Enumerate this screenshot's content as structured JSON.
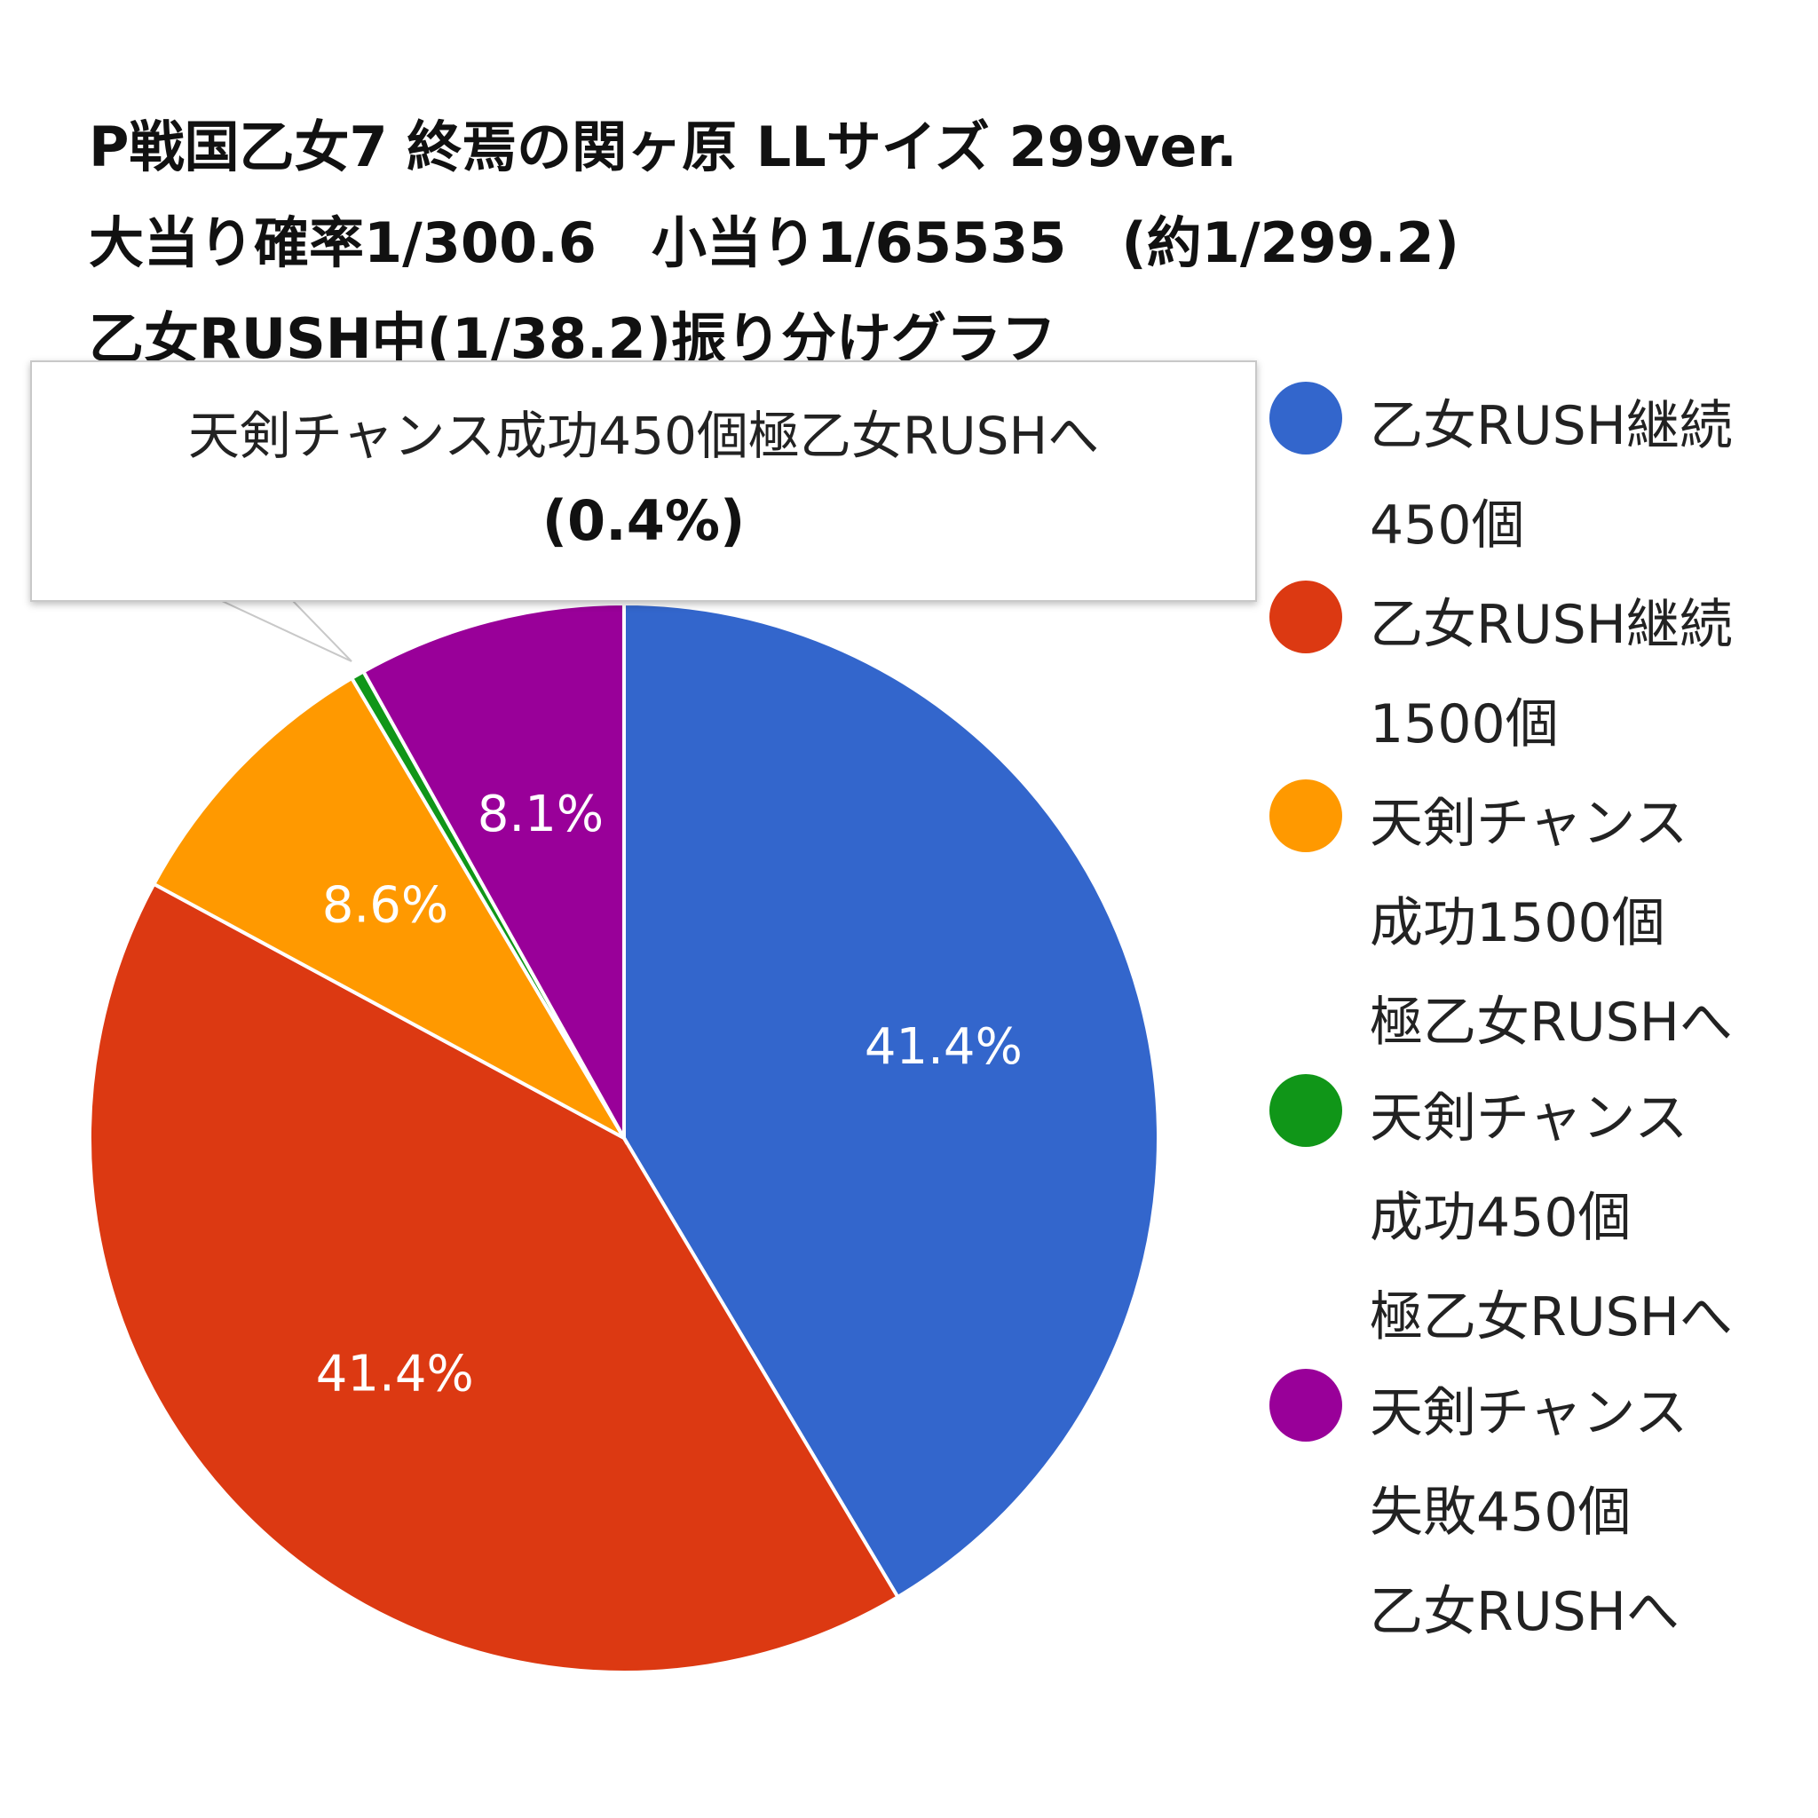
{
  "title_lines": [
    "P戦国乙女7 終焉の関ヶ原 LLサイズ 299ver.",
    "大当り確率1/300.6　小当り1/65535　(約1/299.2)",
    "乙女RUSH中(1/38.2)振り分けグラフ"
  ],
  "tooltip": {
    "label": "天剣チャンス成功450個極乙女RUSHへ",
    "value": "(0.4%)"
  },
  "chart_data": {
    "type": "pie",
    "title": "P戦国乙女7 終焉の関ヶ原 LLサイズ 299ver. 大当り確率1/300.6　小当り1/65535　(約1/299.2) 乙女RUSH中(1/38.2)振り分けグラフ",
    "legend_position": "right",
    "start_angle_deg": 0,
    "direction": "clockwise",
    "slices": [
      {
        "label_lines": [
          "乙女RUSH継続",
          "450個"
        ],
        "value": 41.4,
        "data_label": "41.4%",
        "color": "#3366CC"
      },
      {
        "label_lines": [
          "乙女RUSH継続",
          "1500個"
        ],
        "value": 41.4,
        "data_label": "41.4%",
        "color": "#DC3912"
      },
      {
        "label_lines": [
          "天剣チャンス",
          "成功1500個",
          "極乙女RUSHへ"
        ],
        "value": 8.6,
        "data_label": "8.6%",
        "color": "#FF9900"
      },
      {
        "label_lines": [
          "天剣チャンス",
          "成功450個",
          "極乙女RUSHへ"
        ],
        "value": 0.4,
        "data_label": "",
        "color": "#109618"
      },
      {
        "label_lines": [
          "天剣チャンス",
          "失敗450個",
          "乙女RUSHへ"
        ],
        "value": 8.1,
        "data_label": "8.1%",
        "color": "#990099"
      }
    ]
  }
}
